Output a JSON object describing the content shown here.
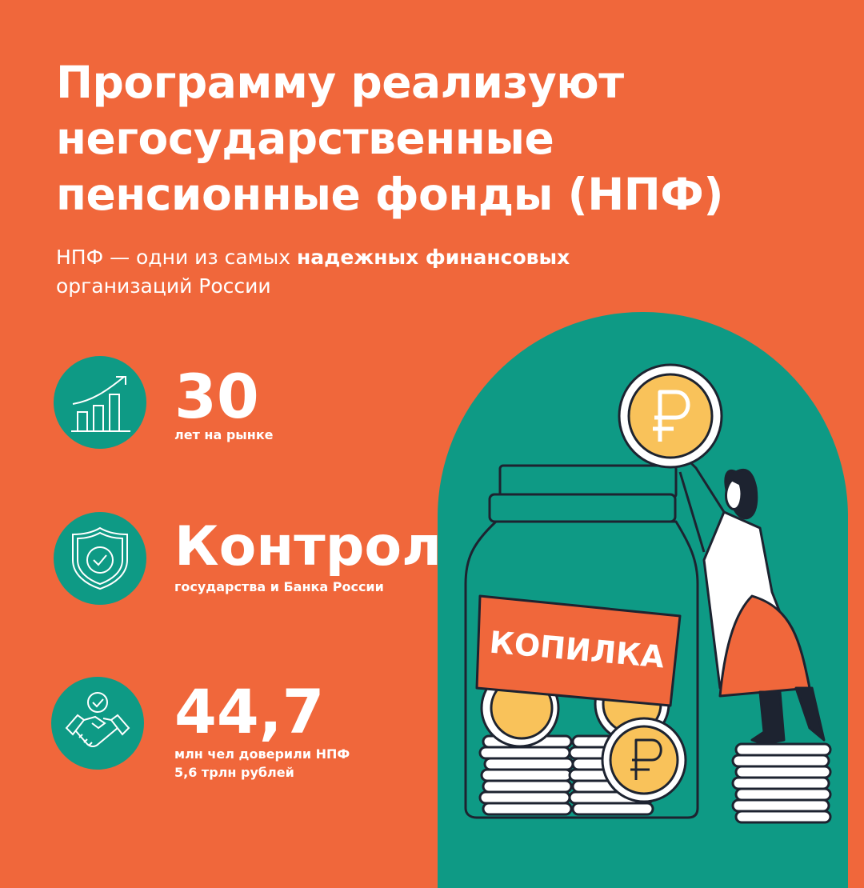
{
  "title": {
    "lines": [
      "Программу реализуют",
      "негосударственные",
      "пенсионные фонды (НПФ)"
    ]
  },
  "subtitle": {
    "prefix": "НПФ — одни из самых ",
    "bold": "надежных финансовых",
    "suffix": " организаций России"
  },
  "stats": [
    {
      "icon": "growth-chart-icon",
      "value": "30",
      "caption": "лет на рынке"
    },
    {
      "icon": "shield-check-icon",
      "value": "Контроль",
      "caption": "государства и Банка России"
    },
    {
      "icon": "handshake-check-icon",
      "value": "44,7",
      "caption_lines": [
        "млн чел доверили НПФ",
        "5,6 трлн рублей"
      ]
    }
  ],
  "illustration": {
    "jar_label": "КОПИЛКА"
  },
  "colors": {
    "background": "#F0673B",
    "accent": "#0E9A85",
    "coin": "#F9C25A"
  }
}
